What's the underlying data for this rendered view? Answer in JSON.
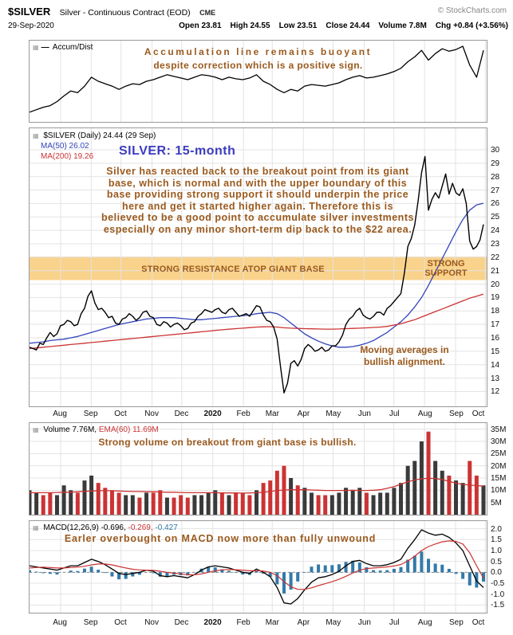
{
  "header": {
    "symbol": "$SILVER",
    "description": "Silver - Continuous Contract (EOD)",
    "exchange": "CME",
    "copyright": "© StockCharts.com",
    "date": "29-Sep-2020",
    "quote": [
      {
        "label": "Open",
        "value": "23.81"
      },
      {
        "label": "High",
        "value": "24.55"
      },
      {
        "label": "Low",
        "value": "23.51"
      },
      {
        "label": "Close",
        "value": "24.44"
      },
      {
        "label": "Volume",
        "value": "7.8M"
      },
      {
        "label": "Chg",
        "value": "+0.84 (+3.56%)"
      }
    ]
  },
  "panels": {
    "accum": {
      "legend": "Accum/Dist",
      "annotation_line1": "Accumulation line remains buoyant",
      "annotation_line2": "despite correction which is a positive sign."
    },
    "price": {
      "legend_main": "$SILVER (Daily) 24.44 (29 Sep)",
      "legend_ma50": "MA(50) 26.02",
      "legend_ma200": "MA(200) 19.26",
      "title": "SILVER: 15-month",
      "paragraph_lines": [
        "Silver has reacted back to the breakout point from its giant",
        "base, which is normal and with the upper boundary of this",
        "base providing strong support it should underpin the price",
        "here and get it started higher again. Therefore this is",
        "believed to be a good point to accumulate silver investments",
        "especially on any minor short-term dip back to the $22 area."
      ],
      "band_label": "STRONG RESISTANCE ATOP GIANT BASE",
      "support_label_line1": "STRONG",
      "support_label_line2": "SUPPORT",
      "ma_note_line1": "Moving averages in",
      "ma_note_line2": "bullish alignment."
    },
    "volume": {
      "legend_volume": "Volume 7.76M,",
      "legend_ema": "EMA(60) 11.69M",
      "annotation": "Strong volume on breakout from giant base is bullish."
    },
    "macd": {
      "legend_name": "MACD(12,26,9)",
      "value_macd": "-0.696,",
      "value_signal": "-0.269,",
      "value_hist": "-0.427",
      "annotation": "Earler overbought on MACD now more than fully unwound"
    }
  },
  "axis": {
    "months": [
      "Aug",
      "Sep",
      "Oct",
      "Nov",
      "Dec",
      "2020",
      "Feb",
      "Mar",
      "Apr",
      "May",
      "Jun",
      "Jul",
      "Aug",
      "Sep",
      "Oct"
    ],
    "bold_month": "2020",
    "month_fracs": [
      0.068,
      0.135,
      0.2,
      0.268,
      0.333,
      0.401,
      0.468,
      0.531,
      0.599,
      0.664,
      0.732,
      0.797,
      0.864,
      0.932,
      0.997
    ]
  },
  "colors": {
    "annotation": "#9A5A1E",
    "title": "#3C3CC0",
    "ma50": "#3344BB",
    "ma200": "#CC3333",
    "band": "#F9D28B",
    "hist": "#337AA8",
    "vol-up": "#3A3A3A",
    "vol-down": "#CC3333",
    "grid": "#E3E3E3"
  },
  "chart_data": [
    {
      "id": "accum",
      "type": "line",
      "title": "Accum/Dist",
      "ylim": [
        0,
        100
      ],
      "series": [
        {
          "name": "Accum/Dist",
          "color": "#000000",
          "width": 1.3,
          "values": [
            12,
            15,
            18,
            20,
            25,
            32,
            38,
            36,
            44,
            55,
            50,
            47,
            44,
            40,
            44,
            47,
            46,
            50,
            52,
            55,
            58,
            56,
            54,
            52,
            55,
            58,
            57,
            55,
            52,
            55,
            53,
            52,
            54,
            58,
            50,
            46,
            40,
            36,
            40,
            38,
            44,
            46,
            45,
            44,
            46,
            48,
            52,
            55,
            57,
            54,
            55,
            57,
            59,
            62,
            66,
            74,
            80,
            88,
            76,
            84,
            90,
            87,
            89,
            93,
            70,
            55,
            88
          ]
        }
      ]
    },
    {
      "id": "price",
      "type": "line",
      "title": "$SILVER (Daily)",
      "ylim": [
        10.9,
        31.6
      ],
      "yticks": [
        {
          "v": 30,
          "t": "30"
        },
        {
          "v": 29,
          "t": "29"
        },
        {
          "v": 28,
          "t": "28"
        },
        {
          "v": 27,
          "t": "27"
        },
        {
          "v": 26,
          "t": "26"
        },
        {
          "v": 25,
          "t": "25"
        },
        {
          "v": 24,
          "t": "24"
        },
        {
          "v": 23,
          "t": "23"
        },
        {
          "v": 22,
          "t": "22"
        },
        {
          "v": 21,
          "t": "21"
        },
        {
          "v": 20,
          "t": "20"
        },
        {
          "v": 19,
          "t": "19"
        },
        {
          "v": 18,
          "t": "18"
        },
        {
          "v": 17,
          "t": "17"
        },
        {
          "v": 16,
          "t": "16"
        },
        {
          "v": 15,
          "t": "15"
        },
        {
          "v": 14,
          "t": "14"
        },
        {
          "v": 13,
          "t": "13"
        },
        {
          "v": 12,
          "t": "12"
        }
      ],
      "band": {
        "from": 20.3,
        "to": 22.05,
        "color": "#F9D28B",
        "label": "STRONG RESISTANCE ATOP GIANT BASE"
      },
      "series": [
        {
          "name": "MA(50)",
          "color": "#3344BB",
          "width": 1.3,
          "values": [
            15.6,
            15.65,
            15.7,
            15.8,
            15.85,
            15.9,
            16.0,
            16.1,
            16.25,
            16.4,
            16.55,
            16.7,
            16.85,
            17.0,
            17.1,
            17.2,
            17.3,
            17.4,
            17.45,
            17.5,
            17.5,
            17.5,
            17.45,
            17.4,
            17.35,
            17.35,
            17.4,
            17.45,
            17.5,
            17.55,
            17.6,
            17.65,
            17.7,
            17.8,
            17.85,
            17.9,
            17.8,
            17.5,
            17.1,
            16.7,
            16.3,
            16.0,
            15.75,
            15.55,
            15.4,
            15.3,
            15.3,
            15.35,
            15.45,
            15.6,
            15.8,
            16.1,
            16.4,
            16.8,
            17.2,
            17.7,
            18.3,
            19.0,
            19.9,
            20.9,
            21.9,
            22.9,
            23.9,
            24.8,
            25.5,
            25.9,
            26.02
          ]
        },
        {
          "name": "MA(200)",
          "color": "#CC3333",
          "width": 1.3,
          "values": [
            15.2,
            15.25,
            15.3,
            15.35,
            15.4,
            15.45,
            15.5,
            15.55,
            15.6,
            15.65,
            15.7,
            15.75,
            15.8,
            15.85,
            15.9,
            15.95,
            16.0,
            16.05,
            16.1,
            16.15,
            16.2,
            16.25,
            16.3,
            16.35,
            16.4,
            16.45,
            16.5,
            16.55,
            16.6,
            16.64,
            16.68,
            16.72,
            16.76,
            16.8,
            16.82,
            16.83,
            16.8,
            16.75,
            16.72,
            16.7,
            16.68,
            16.67,
            16.66,
            16.65,
            16.65,
            16.66,
            16.68,
            16.7,
            16.72,
            16.74,
            16.77,
            16.8,
            16.85,
            16.95,
            17.05,
            17.2,
            17.35,
            17.55,
            17.75,
            17.95,
            18.15,
            18.35,
            18.55,
            18.75,
            18.95,
            19.1,
            19.26
          ]
        },
        {
          "name": "$SILVER close",
          "color": "#000000",
          "width": 1.4,
          "values": [
            15.3,
            15.2,
            15.1,
            15.6,
            15.5,
            16.0,
            16.4,
            16.1,
            16.3,
            16.9,
            17.0,
            17.3,
            17.2,
            16.9,
            17.0,
            17.8,
            18.2,
            19.1,
            19.5,
            18.6,
            18.1,
            18.2,
            17.9,
            17.5,
            17.6,
            17.1,
            17.0,
            17.4,
            17.5,
            17.8,
            17.6,
            17.3,
            17.5,
            17.9,
            18.0,
            17.6,
            17.5,
            17.0,
            16.9,
            17.2,
            17.1,
            16.8,
            17.0,
            17.1,
            16.9,
            16.6,
            16.7,
            17.1,
            17.2,
            17.6,
            17.8,
            18.1,
            18.0,
            17.9,
            18.1,
            18.2,
            17.9,
            17.8,
            18.1,
            18.2,
            17.9,
            17.6,
            17.7,
            17.8,
            17.6,
            18.0,
            18.4,
            18.3,
            17.7,
            17.3,
            17.2,
            16.8,
            15.9,
            13.8,
            11.9,
            12.6,
            14.1,
            14.3,
            13.9,
            14.4,
            15.2,
            15.5,
            15.3,
            15.0,
            15.1,
            15.3,
            15.0,
            15.1,
            15.4,
            15.4,
            15.7,
            16.2,
            17.0,
            17.4,
            17.6,
            18.0,
            18.2,
            17.7,
            17.5,
            17.4,
            17.6,
            17.9,
            17.9,
            17.7,
            18.2,
            18.4,
            18.7,
            19.0,
            19.3,
            20.8,
            22.8,
            23.4,
            24.4,
            26.2,
            28.3,
            29.5,
            25.5,
            26.3,
            26.8,
            26.4,
            27.3,
            28.2,
            26.7,
            27.5,
            26.8,
            26.6,
            27.1,
            26.0,
            23.2,
            22.6,
            22.8,
            23.3,
            24.44
          ]
        }
      ]
    },
    {
      "id": "volume",
      "type": "bar+line",
      "title": "Volume",
      "unit": "M",
      "ylim": [
        0,
        37.5
      ],
      "yticks": [
        {
          "v": 35,
          "t": "35M"
        },
        {
          "v": 30,
          "t": "30M"
        },
        {
          "v": 25,
          "t": "25M"
        },
        {
          "v": 20,
          "t": "20M"
        },
        {
          "v": 15,
          "t": "15M"
        },
        {
          "v": 10,
          "t": "10M"
        },
        {
          "v": 5,
          "t": "5M"
        }
      ],
      "bars": {
        "name": "Volume (millions)",
        "width": 5,
        "up_color": "#3A3A3A",
        "down_color": "#CC3333",
        "values": [
          10,
          9,
          8,
          9,
          8,
          12,
          10,
          9,
          14,
          16,
          13,
          11,
          10,
          9,
          8,
          8,
          7,
          9,
          9,
          10,
          7,
          7,
          8,
          7,
          8,
          8,
          9,
          10,
          9,
          8,
          9,
          9,
          8,
          10,
          13,
          14,
          18,
          20,
          15,
          12,
          11,
          9,
          8,
          8,
          8,
          9,
          11,
          10,
          11,
          9,
          8,
          9,
          9,
          11,
          13,
          20,
          22,
          30,
          34,
          22,
          18,
          16,
          14,
          13,
          22,
          16,
          12
        ],
        "dirs": [
          1,
          1,
          0,
          0,
          1,
          1,
          1,
          0,
          1,
          1,
          0,
          0,
          0,
          0,
          1,
          1,
          0,
          1,
          0,
          0,
          1,
          0,
          0,
          0,
          1,
          1,
          1,
          1,
          0,
          1,
          0,
          0,
          0,
          1,
          0,
          0,
          0,
          0,
          1,
          0,
          1,
          1,
          0,
          0,
          1,
          1,
          1,
          1,
          1,
          0,
          1,
          1,
          1,
          1,
          1,
          1,
          1,
          1,
          0,
          1,
          1,
          0,
          1,
          1,
          0,
          0,
          1
        ]
      },
      "series": [
        {
          "name": "EMA(60)",
          "color": "#CC3333",
          "width": 1.3,
          "values": [
            9.0,
            9.0,
            9.0,
            9.0,
            9.1,
            9.2,
            9.2,
            9.4,
            9.6,
            9.7,
            9.8,
            9.8,
            9.8,
            9.7,
            9.6,
            9.5,
            9.5,
            9.4,
            9.4,
            9.3,
            9.2,
            9.2,
            9.1,
            9.0,
            9.0,
            9.0,
            9.0,
            9.0,
            8.9,
            8.9,
            8.9,
            8.8,
            8.9,
            9.0,
            9.2,
            9.5,
            9.9,
            10.1,
            10.2,
            10.2,
            10.2,
            10.1,
            10.0,
            9.9,
            9.9,
            9.9,
            9.9,
            10.0,
            9.9,
            9.9,
            10.0,
            10.2,
            10.8,
            11.5,
            12.5,
            13.5,
            14.2,
            14.7,
            14.9,
            14.8,
            14.4,
            13.6,
            12.9,
            12.4,
            12.1,
            11.9,
            11.69
          ]
        }
      ]
    },
    {
      "id": "macd",
      "type": "macd",
      "title": "MACD(12,26,9)",
      "ylim": [
        -1.85,
        2.35
      ],
      "zero_line": true,
      "hist_color": "#337AA8",
      "yticks": [
        {
          "v": 2.0,
          "t": "2.0"
        },
        {
          "v": 1.5,
          "t": "1.5"
        },
        {
          "v": 1.0,
          "t": "1.0"
        },
        {
          "v": 0.5,
          "t": "0.5"
        },
        {
          "v": 0.0,
          "t": "0.0"
        },
        {
          "v": -0.5,
          "t": "-0.5"
        },
        {
          "v": -1.0,
          "t": "-1.0"
        },
        {
          "v": -1.5,
          "t": "-1.5"
        }
      ],
      "series": [
        {
          "name": "MACD",
          "color": "#000000",
          "width": 1.3,
          "values": [
            0.3,
            0.25,
            0.2,
            0.15,
            0.1,
            0.2,
            0.3,
            0.3,
            0.45,
            0.6,
            0.5,
            0.35,
            0.15,
            -0.05,
            -0.1,
            -0.05,
            0.0,
            0.1,
            0.05,
            -0.15,
            -0.2,
            -0.15,
            -0.2,
            -0.25,
            -0.1,
            0.1,
            0.25,
            0.3,
            0.25,
            0.2,
            0.1,
            0.0,
            -0.05,
            0.15,
            0.0,
            -0.2,
            -0.7,
            -1.4,
            -1.45,
            -1.2,
            -0.8,
            -0.45,
            -0.25,
            -0.2,
            -0.1,
            0.05,
            0.3,
            0.5,
            0.55,
            0.4,
            0.3,
            0.3,
            0.35,
            0.45,
            0.6,
            1.1,
            1.5,
            1.95,
            1.8,
            1.7,
            1.75,
            1.6,
            1.35,
            1.0,
            0.3,
            -0.4,
            -0.696
          ]
        },
        {
          "name": "Signal",
          "color": "#CC3333",
          "width": 1.2,
          "values": [
            0.2,
            0.22,
            0.24,
            0.22,
            0.2,
            0.2,
            0.22,
            0.24,
            0.28,
            0.34,
            0.38,
            0.38,
            0.34,
            0.27,
            0.2,
            0.14,
            0.11,
            0.1,
            0.09,
            0.05,
            0.0,
            -0.04,
            -0.07,
            -0.11,
            -0.11,
            -0.07,
            0.0,
            0.07,
            0.11,
            0.13,
            0.12,
            0.1,
            0.07,
            0.08,
            0.06,
            0.0,
            -0.15,
            -0.43,
            -0.66,
            -0.78,
            -0.78,
            -0.71,
            -0.61,
            -0.52,
            -0.43,
            -0.32,
            -0.18,
            -0.03,
            0.1,
            0.17,
            0.2,
            0.22,
            0.25,
            0.29,
            0.36,
            0.52,
            0.74,
            1.0,
            1.18,
            1.3,
            1.4,
            1.44,
            1.42,
            1.3,
            0.9,
            0.3,
            -0.269
          ]
        }
      ]
    }
  ]
}
